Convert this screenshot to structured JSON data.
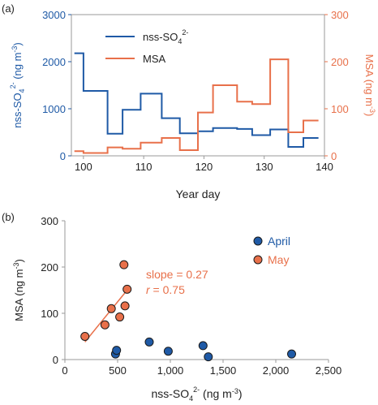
{
  "chart_data": [
    {
      "panel_label": "(a)",
      "type": "line",
      "step": true,
      "xlabel": "Year day",
      "ylabel_left": "nss-SO",
      "ylabel_left_sub": "4",
      "ylabel_left_sup": "2-",
      "ylabel_left_units": " (ng m",
      "ylabel_left_units_sup": "-3",
      "ylabel_left_units_close": ")",
      "ylabel_right": "MSA (ng m",
      "ylabel_right_sup": "-3",
      "ylabel_right_close": ")",
      "xlim": [
        98,
        140
      ],
      "ylim_left": [
        0,
        3000
      ],
      "ylim_right": [
        0,
        300
      ],
      "xticks": [
        100,
        110,
        120,
        130,
        140
      ],
      "yticks_left": [
        0,
        1000,
        2000,
        3000
      ],
      "yticks_right": [
        0,
        100,
        200,
        300
      ],
      "legend_position": "top-center",
      "series": [
        {
          "name": "nss-SO",
          "name_sub": "4",
          "name_sup": "2-",
          "axis": "left",
          "color": "#1f5aa6",
          "edges": [
            98.5,
            100,
            104,
            106.5,
            109.5,
            113,
            116,
            119,
            121.5,
            125.5,
            128,
            131,
            134,
            136.5,
            139
          ],
          "values": [
            2180,
            1380,
            470,
            980,
            1320,
            800,
            480,
            520,
            590,
            570,
            440,
            560,
            190,
            380
          ]
        },
        {
          "name": "MSA",
          "axis": "right",
          "color": "#e8704a",
          "edges": [
            98.5,
            100,
            104,
            106.5,
            109.5,
            113,
            116,
            119,
            121.5,
            125.5,
            128,
            131,
            134,
            136.5,
            139
          ],
          "values": [
            10,
            6,
            18,
            15,
            28,
            38,
            12,
            92,
            150,
            115,
            110,
            205,
            50,
            75
          ]
        }
      ]
    },
    {
      "panel_label": "(b)",
      "type": "scatter",
      "xlabel": "nss-SO",
      "xlabel_sub": "4",
      "xlabel_sup": "2-",
      "xlabel_units": " (ng m",
      "xlabel_units_sup": "-3",
      "xlabel_units_close": ")",
      "ylabel": "MSA (ng m",
      "ylabel_sup": "-3",
      "ylabel_close": ")",
      "xlim": [
        0,
        2500
      ],
      "ylim": [
        0,
        300
      ],
      "xticks": [
        0,
        500,
        1000,
        1500,
        2000,
        2500
      ],
      "xtick_labels": [
        "0",
        "500",
        "1,000",
        "1,500",
        "2,000",
        "2,500"
      ],
      "yticks": [
        0,
        100,
        200,
        300
      ],
      "legend_position": "top-right",
      "series": [
        {
          "name": "April",
          "color": "#1f5aa6",
          "points": [
            [
              480,
              12
            ],
            [
              490,
              20
            ],
            [
              800,
              38
            ],
            [
              980,
              18
            ],
            [
              1310,
              30
            ],
            [
              1360,
              6
            ],
            [
              2150,
              12
            ]
          ]
        },
        {
          "name": "May",
          "color": "#e8704a",
          "points": [
            [
              190,
              50
            ],
            [
              380,
              75
            ],
            [
              440,
              110
            ],
            [
              520,
              92
            ],
            [
              560,
              205
            ],
            [
              570,
              116
            ],
            [
              590,
              152
            ]
          ]
        }
      ],
      "fit_line": {
        "x": [
          190,
          590
        ],
        "y": [
          38,
          150
        ],
        "color": "#e8704a"
      },
      "annotations": [
        {
          "text": "slope = 0.27",
          "color": "#e8704a"
        },
        {
          "label": "r",
          "text": " = 0.75",
          "color": "#e8704a"
        }
      ]
    }
  ]
}
